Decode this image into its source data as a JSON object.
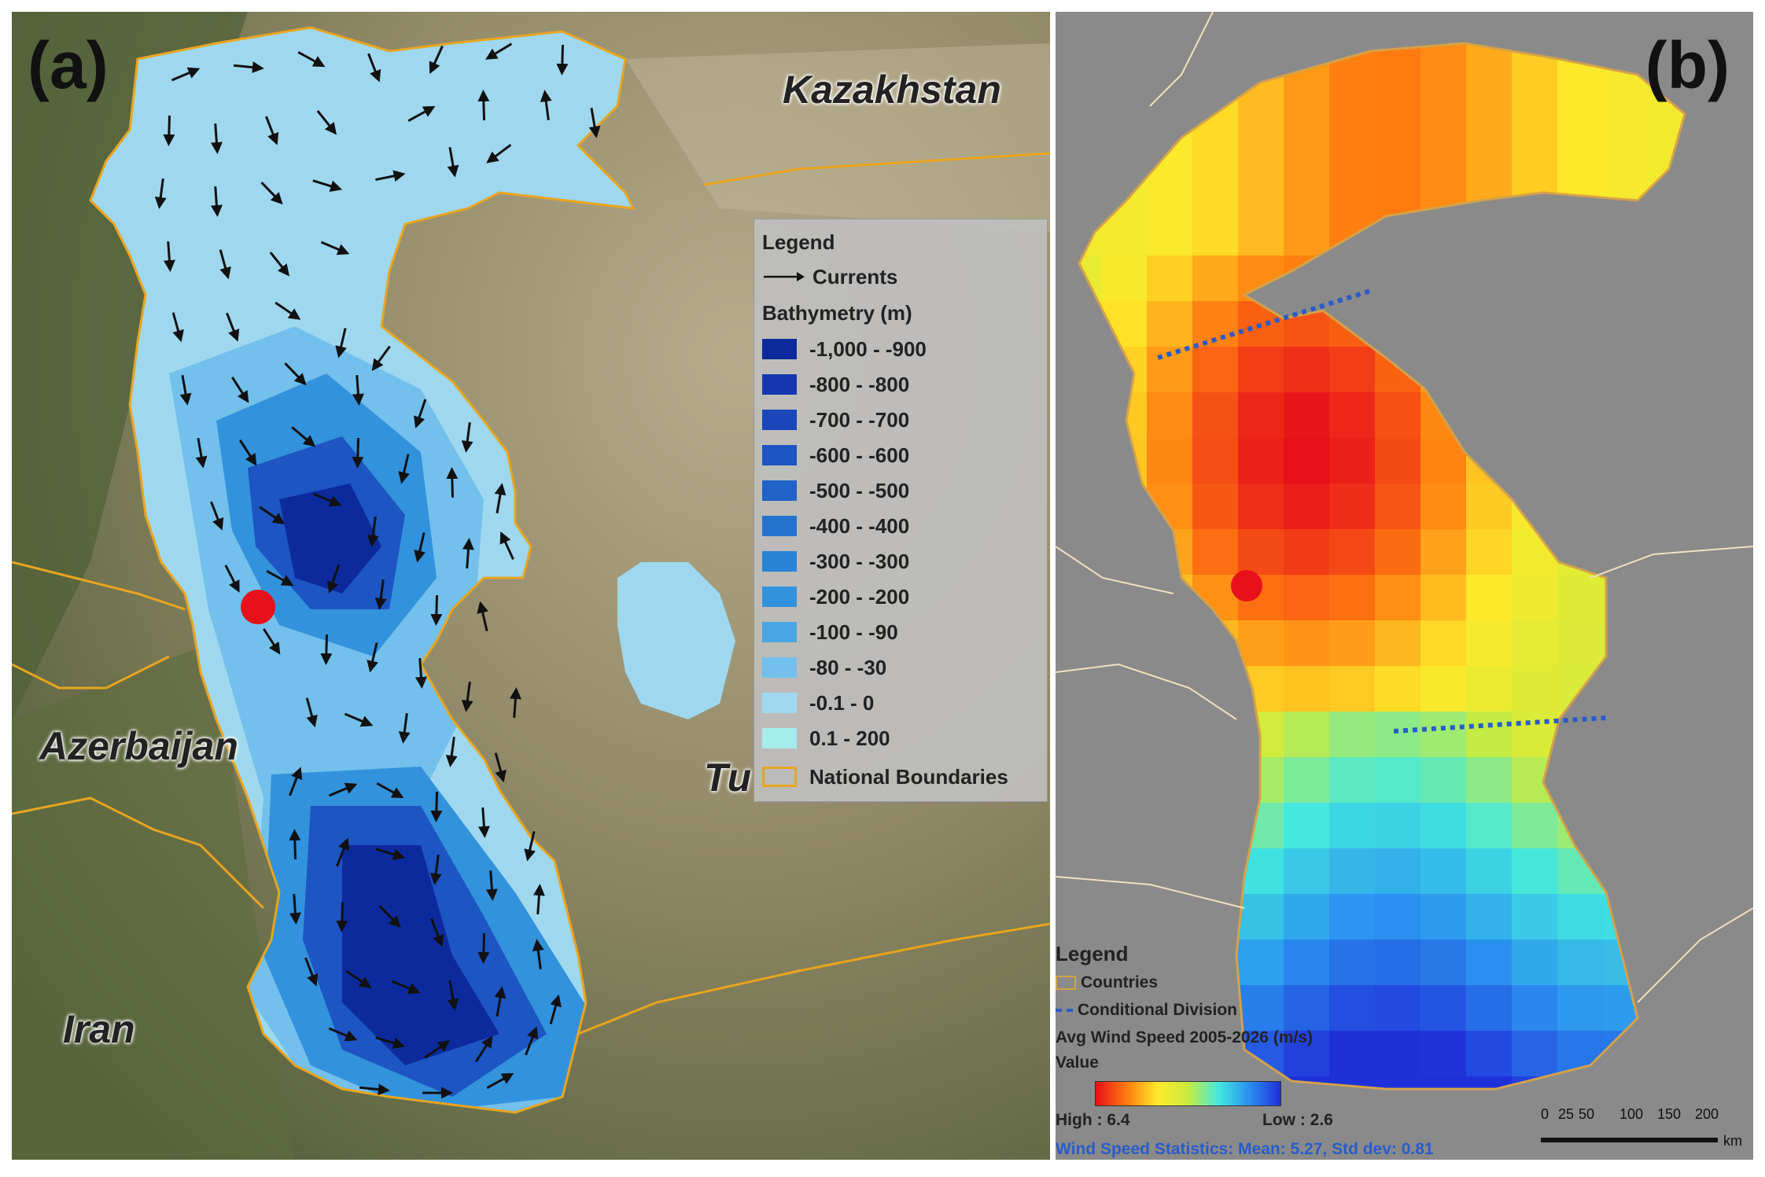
{
  "panel_a": {
    "label": "(a)",
    "countries": {
      "kazakhstan": "Kazakhstan",
      "azerbaijan": "Azerbaijan",
      "iran": "Iran",
      "turkmenistan_partial": "Tu"
    },
    "legend": {
      "title": "Legend",
      "currents_label": "Currents",
      "bathymetry_title": "Bathymetry (m)",
      "classes": [
        {
          "label": "-1,000 - -900",
          "color": "#0d2a9c"
        },
        {
          "label": "-800 - -800",
          "color": "#1537ae"
        },
        {
          "label": "-700 - -700",
          "color": "#1a46b9"
        },
        {
          "label": "-600 - -600",
          "color": "#1d55c2"
        },
        {
          "label": "-500 - -500",
          "color": "#1f63c8"
        },
        {
          "label": "-400 - -400",
          "color": "#2474cf"
        },
        {
          "label": "-300 - -300",
          "color": "#2a84d6"
        },
        {
          "label": "-200 - -200",
          "color": "#3392dc"
        },
        {
          "label": "-100 - -90",
          "color": "#4aa6e2"
        },
        {
          "label": "-80 - -30",
          "color": "#74c0ec"
        },
        {
          "label": "-0.1 - 0",
          "color": "#9fd8ee"
        },
        {
          "label": "0.1 - 200",
          "color": "#a6ecec"
        }
      ],
      "boundaries_label": "National Boundaries",
      "boundary_color": "#e8a520"
    }
  },
  "panel_b": {
    "label": "(b)",
    "legend": {
      "title": "Legend",
      "countries_label": "Countries",
      "division_label": "Conditional Division",
      "variable_label": "Avg Wind Speed 2005-2026 (m/s)",
      "value_label": "Value",
      "high_label": "High : 6.4",
      "low_label": "Low : 2.6",
      "stats": "Wind Speed Statistics: Mean: 5.27, Std dev: 0.81"
    },
    "scalebar": {
      "ticks": [
        "0",
        "25",
        "50",
        "100",
        "150",
        "200"
      ],
      "unit": "km"
    },
    "colors": {
      "high": "#e8101a",
      "low": "#2030d8",
      "division": "#2a5cc8"
    }
  },
  "marker_color": "#e8101a"
}
